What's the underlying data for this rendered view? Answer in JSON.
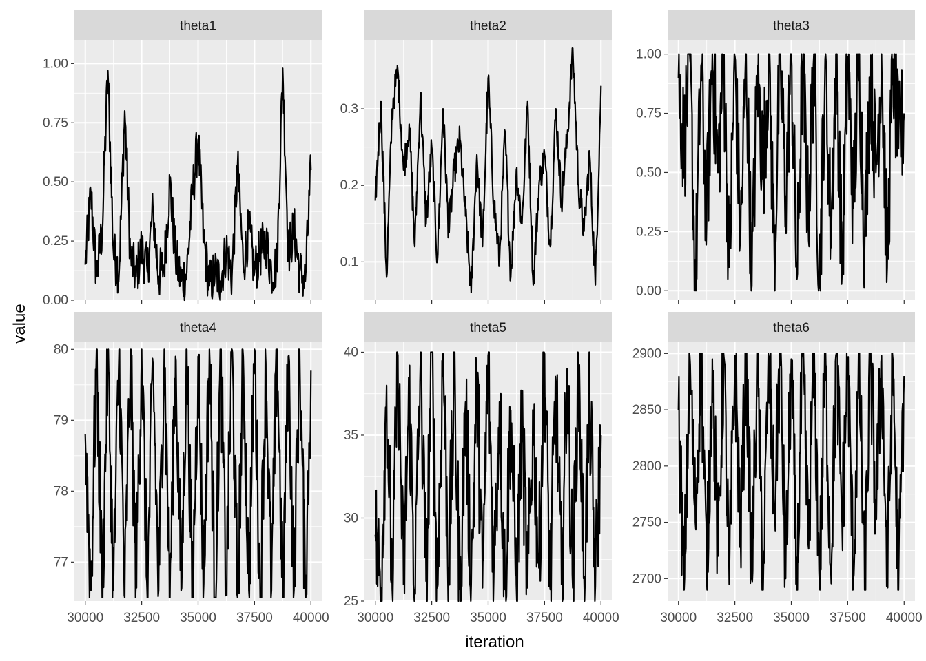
{
  "chart_data": {
    "type": "line",
    "xlabel": "iteration",
    "ylabel": "value",
    "facet_layout": "3 columns x 2 rows, free y scales",
    "x_range": [
      30000,
      40000
    ],
    "x_ticks": [
      30000,
      32500,
      35000,
      37500,
      40000
    ],
    "x_tick_labels": [
      "30000",
      "32500",
      "35000",
      "37500",
      "40000"
    ],
    "grid": true,
    "line_color": "#000000",
    "panel_background": "#ebebeb",
    "strip_background": "#d9d9d9",
    "panels": [
      {
        "title": "theta1",
        "ylim": [
          0.0,
          1.1
        ],
        "y_ticks": [
          0.0,
          0.25,
          0.5,
          0.75,
          1.0
        ],
        "y_tick_labels": [
          "0.00",
          "0.25",
          "0.50",
          "0.75",
          "1.00"
        ],
        "x": [
          30000,
          30250,
          30500,
          30750,
          31000,
          31250,
          31500,
          31750,
          32000,
          32250,
          32500,
          32750,
          33000,
          33250,
          33500,
          33750,
          34000,
          34250,
          34500,
          34750,
          35000,
          35250,
          35500,
          35750,
          36000,
          36250,
          36500,
          36750,
          37000,
          37250,
          37500,
          37750,
          38000,
          38250,
          38500,
          38750,
          39000,
          39250,
          39500,
          39750,
          40000
        ],
        "values": [
          0.15,
          0.45,
          0.1,
          0.3,
          0.97,
          0.2,
          0.12,
          0.8,
          0.18,
          0.1,
          0.22,
          0.12,
          0.38,
          0.1,
          0.15,
          0.5,
          0.18,
          0.08,
          0.12,
          0.45,
          0.68,
          0.25,
          0.06,
          0.12,
          0.08,
          0.22,
          0.1,
          0.57,
          0.15,
          0.3,
          0.12,
          0.2,
          0.25,
          0.12,
          0.15,
          0.98,
          0.2,
          0.3,
          0.12,
          0.08,
          0.55
        ]
      },
      {
        "title": "theta2",
        "ylim": [
          0.05,
          0.39
        ],
        "y_ticks": [
          0.1,
          0.2,
          0.3
        ],
        "y_tick_labels": [
          "0.1",
          "0.2",
          "0.3"
        ],
        "x": [
          30000,
          30250,
          30500,
          30750,
          31000,
          31250,
          31500,
          31750,
          32000,
          32250,
          32500,
          32750,
          33000,
          33250,
          33500,
          33750,
          34000,
          34250,
          34500,
          34750,
          35000,
          35250,
          35500,
          35750,
          36000,
          36250,
          36500,
          36750,
          37000,
          37250,
          37500,
          37750,
          38000,
          38250,
          38500,
          38750,
          39000,
          39250,
          39500,
          39750,
          40000
        ],
        "values": [
          0.18,
          0.31,
          0.08,
          0.3,
          0.35,
          0.22,
          0.28,
          0.12,
          0.32,
          0.15,
          0.25,
          0.1,
          0.3,
          0.14,
          0.22,
          0.26,
          0.16,
          0.06,
          0.24,
          0.12,
          0.34,
          0.18,
          0.1,
          0.27,
          0.08,
          0.22,
          0.15,
          0.31,
          0.07,
          0.2,
          0.24,
          0.12,
          0.3,
          0.18,
          0.26,
          0.38,
          0.2,
          0.14,
          0.24,
          0.07,
          0.33
        ]
      },
      {
        "title": "theta3",
        "ylim": [
          -0.04,
          1.06
        ],
        "y_ticks": [
          0.0,
          0.25,
          0.5,
          0.75,
          1.0
        ],
        "y_tick_labels": [
          "0.00",
          "0.25",
          "0.50",
          "0.75",
          "1.00"
        ],
        "x": [
          30000,
          30250,
          30500,
          30750,
          31000,
          31250,
          31500,
          31750,
          32000,
          32250,
          32500,
          32750,
          33000,
          33250,
          33500,
          33750,
          34000,
          34250,
          34500,
          34750,
          35000,
          35250,
          35500,
          35750,
          36000,
          36250,
          36500,
          36750,
          37000,
          37250,
          37500,
          37750,
          38000,
          38250,
          38500,
          38750,
          39000,
          39250,
          39500,
          39750,
          40000
        ],
        "values": [
          0.9,
          0.6,
          1.0,
          0.01,
          0.95,
          0.3,
          1.0,
          0.5,
          0.98,
          0.1,
          0.99,
          0.2,
          1.0,
          0.02,
          0.95,
          0.5,
          1.0,
          0.15,
          0.99,
          0.4,
          1.0,
          0.05,
          0.97,
          0.3,
          1.0,
          0.01,
          0.98,
          0.25,
          1.0,
          0.08,
          0.99,
          0.35,
          1.0,
          0.2,
          0.95,
          0.5,
          1.0,
          0.1,
          0.98,
          0.6,
          0.75
        ]
      },
      {
        "title": "theta4",
        "ylim": [
          76.45,
          80.1
        ],
        "y_ticks": [
          77,
          78,
          79,
          80
        ],
        "y_tick_labels": [
          "77",
          "78",
          "79",
          "80"
        ],
        "x": [
          30000,
          30250,
          30500,
          30750,
          31000,
          31250,
          31500,
          31750,
          32000,
          32250,
          32500,
          32750,
          33000,
          33250,
          33500,
          33750,
          34000,
          34250,
          34500,
          34750,
          35000,
          35250,
          35500,
          35750,
          36000,
          36250,
          36500,
          36750,
          37000,
          37250,
          37500,
          37750,
          38000,
          38250,
          38500,
          38750,
          39000,
          39250,
          39500,
          39750,
          40000
        ],
        "values": [
          78.8,
          76.6,
          80.0,
          76.5,
          79.9,
          76.6,
          80.0,
          76.5,
          79.9,
          76.7,
          80.0,
          76.5,
          79.8,
          76.6,
          80.0,
          76.5,
          79.9,
          76.6,
          80.0,
          76.5,
          79.9,
          76.7,
          80.0,
          76.5,
          79.9,
          76.6,
          80.0,
          76.5,
          79.9,
          76.6,
          80.0,
          76.5,
          79.8,
          76.6,
          80.0,
          76.5,
          79.9,
          76.6,
          80.0,
          76.5,
          79.7
        ]
      },
      {
        "title": "theta5",
        "ylim": [
          25.0,
          40.6
        ],
        "y_ticks": [
          25,
          30,
          35,
          40
        ],
        "y_tick_labels": [
          "25",
          "30",
          "35",
          "40"
        ],
        "x": [
          30000,
          30250,
          30500,
          30750,
          31000,
          31250,
          31500,
          31750,
          32000,
          32250,
          32500,
          32750,
          33000,
          33250,
          33500,
          33750,
          34000,
          34250,
          34500,
          34750,
          35000,
          35250,
          35500,
          35750,
          36000,
          36250,
          36500,
          36750,
          37000,
          37250,
          37500,
          37750,
          38000,
          38250,
          38500,
          38750,
          39000,
          39250,
          39500,
          39750,
          40000
        ],
        "values": [
          29.0,
          25.8,
          38.0,
          25.7,
          39.8,
          26.0,
          37.5,
          25.7,
          39.5,
          26.2,
          40.0,
          25.8,
          39.9,
          27.0,
          38.0,
          25.7,
          37.0,
          26.0,
          38.5,
          25.8,
          39.8,
          26.5,
          37.0,
          25.7,
          36.5,
          26.0,
          35.5,
          25.8,
          36.0,
          27.0,
          39.9,
          25.7,
          38.0,
          26.0,
          39.0,
          25.8,
          39.8,
          26.5,
          37.0,
          25.9,
          35.0
        ]
      },
      {
        "title": "theta6",
        "ylim": [
          2680,
          2910
        ],
        "y_ticks": [
          2700,
          2750,
          2800,
          2850,
          2900
        ],
        "y_tick_labels": [
          "2700",
          "2750",
          "2800",
          "2850",
          "2900"
        ],
        "x": [
          30000,
          30250,
          30500,
          30750,
          31000,
          31250,
          31500,
          31750,
          32000,
          32250,
          32500,
          32750,
          33000,
          33250,
          33500,
          33750,
          34000,
          34250,
          34500,
          34750,
          35000,
          35250,
          35500,
          35750,
          36000,
          36250,
          36500,
          36750,
          37000,
          37250,
          37500,
          37750,
          38000,
          38250,
          38500,
          38750,
          39000,
          39250,
          39500,
          39750,
          40000
        ],
        "values": [
          2850,
          2690,
          2898,
          2750,
          2900,
          2700,
          2895,
          2720,
          2900,
          2695,
          2898,
          2740,
          2900,
          2700,
          2895,
          2690,
          2898,
          2760,
          2900,
          2700,
          2895,
          2690,
          2898,
          2730,
          2900,
          2695,
          2898,
          2710,
          2900,
          2750,
          2895,
          2700,
          2898,
          2690,
          2900,
          2760,
          2898,
          2700,
          2895,
          2690,
          2880
        ]
      }
    ]
  }
}
